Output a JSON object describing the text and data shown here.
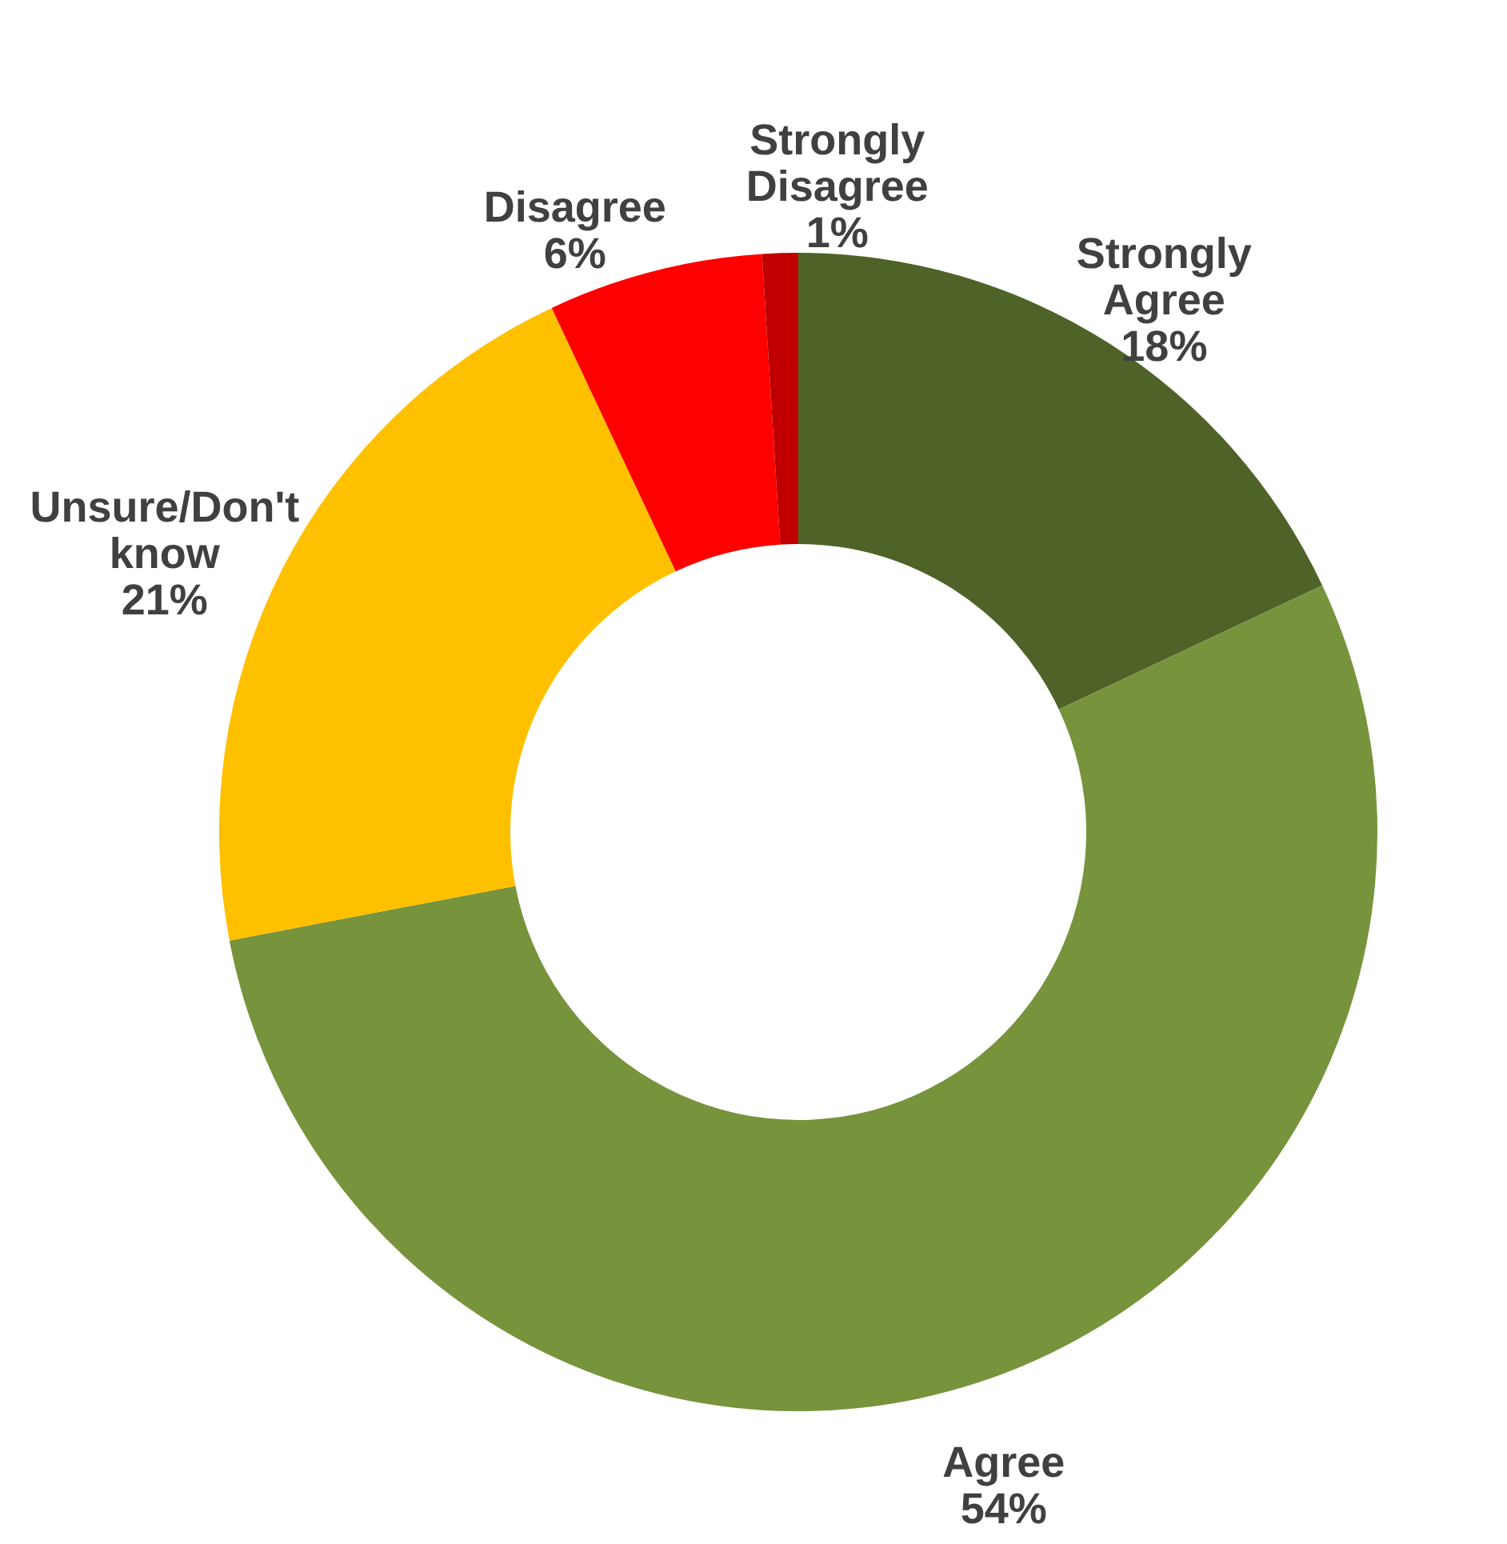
{
  "chart_data": {
    "type": "donut",
    "categories": [
      "Strongly Agree",
      "Agree",
      "Unsure/Don't know",
      "Disagree",
      "Strongly Disagree"
    ],
    "values": [
      18,
      54,
      21,
      6,
      1
    ],
    "colors": [
      "#4f6228",
      "#77933c",
      "#ffc000",
      "#ff0000",
      "#c00000"
    ],
    "value_labels": [
      "18%",
      "54%",
      "21%",
      "6%",
      "1%"
    ]
  }
}
